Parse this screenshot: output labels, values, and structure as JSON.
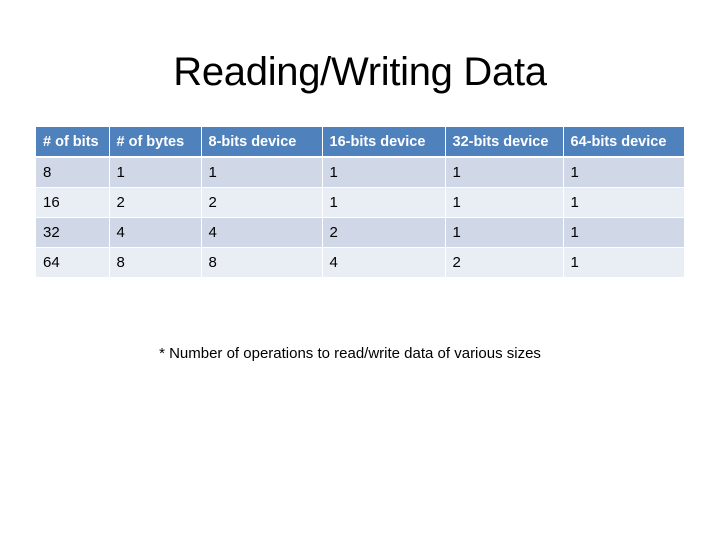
{
  "slide": {
    "title": "Reading/Writing Data",
    "footnote": "* Number of operations to read/write data of various sizes"
  },
  "table": {
    "headers": [
      "# of bits",
      "# of bytes",
      "8-bits device",
      "16-bits device",
      "32-bits device",
      "64-bits device"
    ],
    "rows": [
      [
        "8",
        "1",
        "1",
        "1",
        "1",
        "1"
      ],
      [
        "16",
        "2",
        "2",
        "1",
        "1",
        "1"
      ],
      [
        "32",
        "4",
        "4",
        "2",
        "1",
        "1"
      ],
      [
        "64",
        "8",
        "8",
        "4",
        "2",
        "1"
      ]
    ]
  },
  "colors": {
    "header_background": "#4f81bd",
    "row_odd_background": "#d0d8e8",
    "row_even_background": "#e9edf4"
  }
}
